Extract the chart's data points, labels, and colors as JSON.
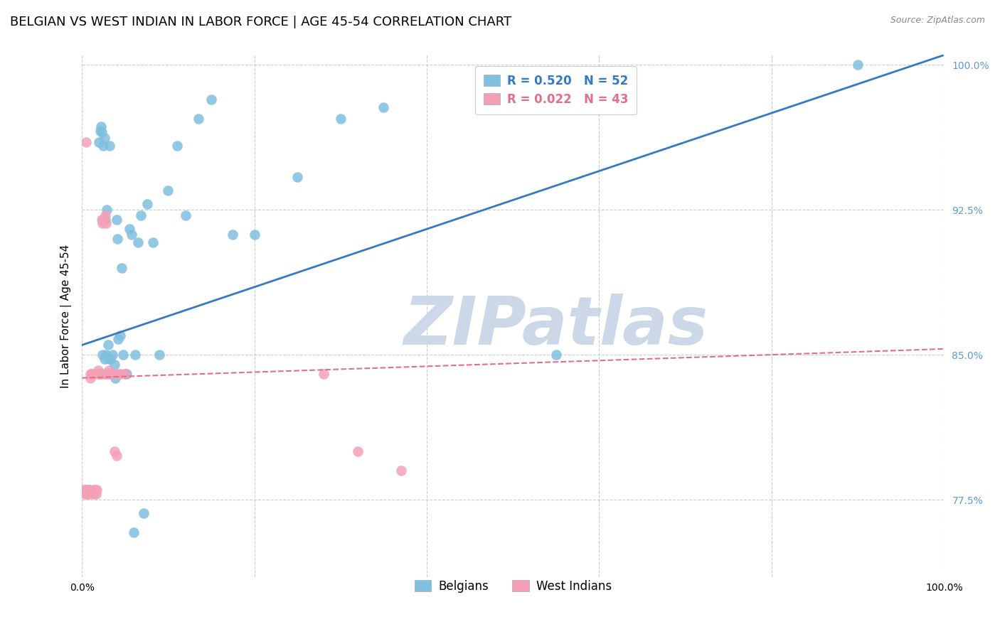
{
  "title": "BELGIAN VS WEST INDIAN IN LABOR FORCE | AGE 45-54 CORRELATION CHART",
  "source": "Source: ZipAtlas.com",
  "xlabel": "",
  "ylabel": "In Labor Force | Age 45-54",
  "xlim": [
    0.0,
    1.0
  ],
  "ylim": [
    0.735,
    1.005
  ],
  "x_ticks": [
    0.0,
    0.2,
    0.4,
    0.6,
    0.8,
    1.0
  ],
  "x_tick_labels": [
    "0.0%",
    "",
    "",
    "",
    "",
    "100.0%"
  ],
  "y_ticks": [
    0.775,
    0.85,
    0.925,
    1.0
  ],
  "y_tick_labels": [
    "77.5%",
    "85.0%",
    "92.5%",
    "100.0%"
  ],
  "belgian_R": 0.52,
  "belgian_N": 52,
  "west_indian_R": 0.022,
  "west_indian_N": 43,
  "belgian_color": "#7fbfdf",
  "west_indian_color": "#f4a0b8",
  "belgian_line_color": "#3579c0",
  "west_indian_line_color": "#e0708a",
  "background_color": "#ffffff",
  "grid_color": "#cccccc",
  "watermark_text": "ZIPatlas",
  "watermark_color": "#ccd8e8",
  "title_fontsize": 13,
  "axis_label_fontsize": 11,
  "tick_fontsize": 10,
  "legend_fontsize": 12,
  "belgians_x": [
    0.02,
    0.021,
    0.022,
    0.022,
    0.023,
    0.024,
    0.025,
    0.026,
    0.026,
    0.027,
    0.028,
    0.029,
    0.03,
    0.031,
    0.032,
    0.033,
    0.034,
    0.035,
    0.036,
    0.037,
    0.038,
    0.039,
    0.04,
    0.041,
    0.042,
    0.044,
    0.046,
    0.048,
    0.05,
    0.052,
    0.055,
    0.058,
    0.06,
    0.062,
    0.065,
    0.068,
    0.072,
    0.076,
    0.082,
    0.09,
    0.1,
    0.11,
    0.12,
    0.135,
    0.15,
    0.175,
    0.2,
    0.25,
    0.3,
    0.35,
    0.55,
    0.9
  ],
  "belgians_y": [
    0.96,
    0.966,
    0.968,
    0.84,
    0.965,
    0.85,
    0.958,
    0.962,
    0.848,
    0.92,
    0.85,
    0.925,
    0.855,
    0.848,
    0.958,
    0.848,
    0.84,
    0.85,
    0.84,
    0.84,
    0.845,
    0.838,
    0.92,
    0.91,
    0.858,
    0.86,
    0.895,
    0.85,
    0.84,
    0.84,
    0.915,
    0.912,
    0.758,
    0.85,
    0.908,
    0.922,
    0.768,
    0.928,
    0.908,
    0.85,
    0.935,
    0.958,
    0.922,
    0.972,
    0.982,
    0.912,
    0.912,
    0.942,
    0.972,
    0.978,
    0.85,
    1.0
  ],
  "west_indians_x": [
    0.002,
    0.003,
    0.004,
    0.005,
    0.006,
    0.006,
    0.007,
    0.008,
    0.009,
    0.01,
    0.01,
    0.011,
    0.012,
    0.013,
    0.014,
    0.015,
    0.016,
    0.017,
    0.018,
    0.019,
    0.02,
    0.021,
    0.022,
    0.023,
    0.024,
    0.025,
    0.026,
    0.027,
    0.028,
    0.029,
    0.03,
    0.031,
    0.032,
    0.034,
    0.036,
    0.038,
    0.04,
    0.042,
    0.045,
    0.05,
    0.28,
    0.32,
    0.37
  ],
  "west_indians_y": [
    0.78,
    0.778,
    0.78,
    0.96,
    0.78,
    0.778,
    0.78,
    0.778,
    0.78,
    0.84,
    0.838,
    0.84,
    0.84,
    0.778,
    0.78,
    0.78,
    0.778,
    0.78,
    0.84,
    0.842,
    0.84,
    0.84,
    0.84,
    0.92,
    0.918,
    0.92,
    0.84,
    0.922,
    0.918,
    0.84,
    0.84,
    0.842,
    0.84,
    0.84,
    0.84,
    0.8,
    0.798,
    0.84,
    0.84,
    0.84,
    0.84,
    0.8,
    0.79
  ],
  "belgian_line_x0": 0.0,
  "belgian_line_y0": 0.855,
  "belgian_line_x1": 1.0,
  "belgian_line_y1": 1.005,
  "west_indian_line_x0": 0.0,
  "west_indian_line_y0": 0.838,
  "west_indian_line_x1": 1.0,
  "west_indian_line_y1": 0.853
}
